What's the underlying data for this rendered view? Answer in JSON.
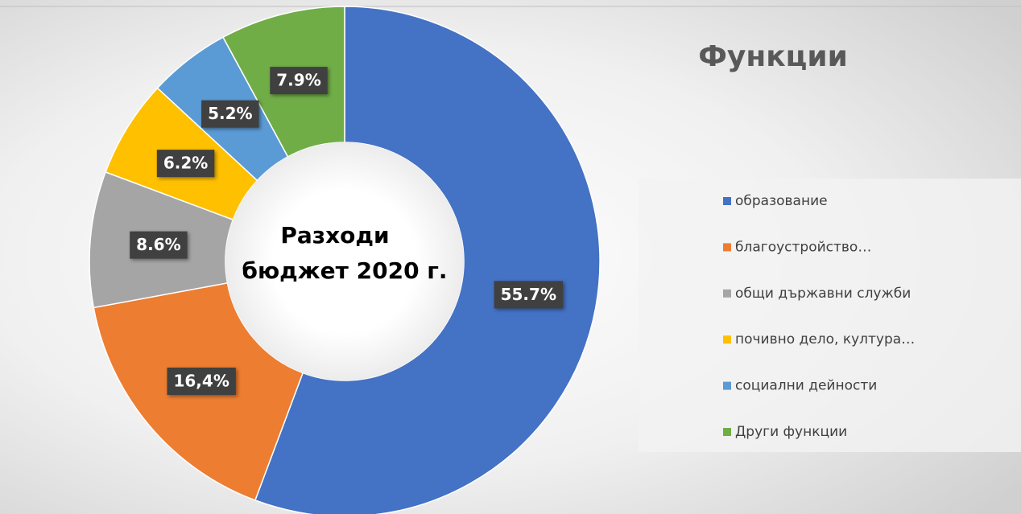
{
  "chart_data": {
    "type": "donut",
    "title": "Функции",
    "center_text": [
      "Разходи",
      "бюджет 2020 г."
    ],
    "categories": [
      "образование",
      "благоустройство…",
      "общи държавни служби",
      "почивно дело, култура…",
      "социални дейности",
      "Други функции"
    ],
    "values": [
      55.7,
      16.4,
      8.6,
      6.2,
      5.2,
      7.9
    ],
    "value_labels": [
      "55.7%",
      "16,4%",
      "8.6%",
      "6.2%",
      "5.2%",
      "7.9%"
    ],
    "colors": [
      "#4472c4",
      "#ed7d31",
      "#a5a5a5",
      "#ffc000",
      "#5b9bd5",
      "#70ad47"
    ],
    "legend": "right"
  }
}
